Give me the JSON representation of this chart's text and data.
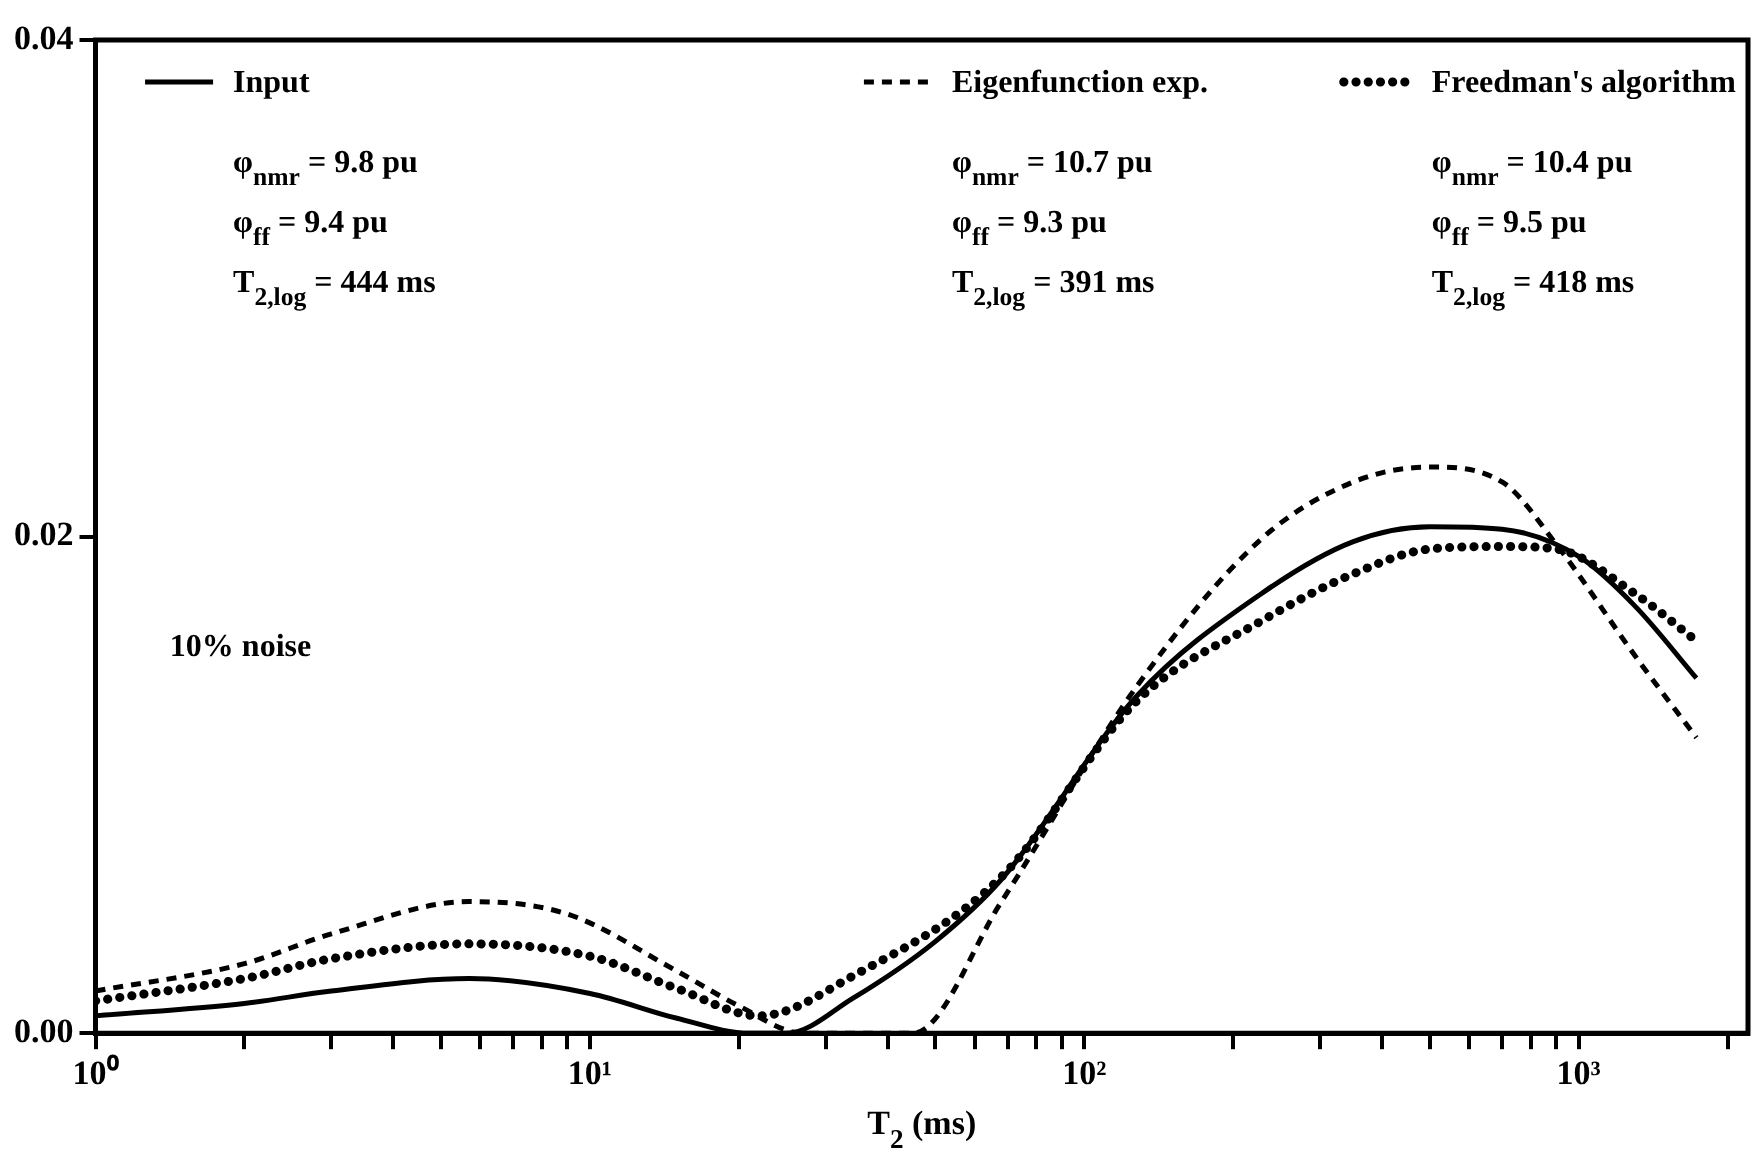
{
  "chart_data": {
    "type": "line",
    "xlabel": "T$_{2}$ (ms)",
    "log": "x",
    "grid": false,
    "legend": "top",
    "marker": "none",
    "xlim": [
      1,
      2200
    ],
    "ylim": [
      0,
      0.04
    ],
    "xticks": [
      {
        "value": 1,
        "label": "10⁰"
      },
      {
        "value": 2,
        "label": null
      },
      {
        "value": 3,
        "label": null
      },
      {
        "value": 4,
        "label": null
      },
      {
        "value": 5,
        "label": null
      },
      {
        "value": 6,
        "label": null
      },
      {
        "value": 7,
        "label": null
      },
      {
        "value": 8,
        "label": null
      },
      {
        "value": 9,
        "label": null
      },
      {
        "value": 10,
        "label": "10¹"
      },
      {
        "value": 20,
        "label": null
      },
      {
        "value": 30,
        "label": null
      },
      {
        "value": 40,
        "label": null
      },
      {
        "value": 50,
        "label": null
      },
      {
        "value": 60,
        "label": null
      },
      {
        "value": 70,
        "label": null
      },
      {
        "value": 80,
        "label": null
      },
      {
        "value": 90,
        "label": null
      },
      {
        "value": 100,
        "label": "10²"
      },
      {
        "value": 200,
        "label": null
      },
      {
        "value": 300,
        "label": null
      },
      {
        "value": 400,
        "label": null
      },
      {
        "value": 500,
        "label": null
      },
      {
        "value": 600,
        "label": null
      },
      {
        "value": 700,
        "label": null
      },
      {
        "value": 800,
        "label": null
      },
      {
        "value": 900,
        "label": null
      },
      {
        "value": 1000,
        "label": "10³"
      },
      {
        "value": 2000,
        "label": null
      }
    ],
    "yticks": [
      {
        "value": 0,
        "label": "0.00"
      },
      {
        "value": 0.02,
        "label": "0.02"
      },
      {
        "value": 0.04,
        "label": "0.04"
      }
    ],
    "series": [
      {
        "name": "Input",
        "color": "#000000",
        "line_style": "solid",
        "x": [
          1,
          2,
          3,
          5.7,
          10,
          15,
          21,
          25,
          34,
          50,
          68,
          128,
          228,
          350,
          500,
          700,
          1000,
          1300,
          1730
        ],
        "values": [
          0.0007,
          0.0012,
          0.0017,
          0.0022,
          0.0016,
          0.0006,
          0.0,
          0.0,
          0.0014,
          0.0037,
          0.0062,
          0.0136,
          0.0177,
          0.0198,
          0.0204,
          0.0203,
          0.0192,
          0.0172,
          0.0143
        ]
      },
      {
        "name": "Eigenfunction exp.",
        "color": "#000000",
        "line_style": "dashed",
        "x": [
          1,
          2,
          3,
          5.7,
          9,
          15,
          20,
          27,
          45,
          68,
          128,
          228,
          350,
          500,
          700,
          900,
          1300,
          1730
        ],
        "values": [
          0.0017,
          0.0028,
          0.004,
          0.0053,
          0.0048,
          0.0025,
          0.0011,
          0.0,
          0.0,
          0.0053,
          0.014,
          0.0199,
          0.0222,
          0.0228,
          0.0222,
          0.0197,
          0.0152,
          0.0119
        ]
      },
      {
        "name": "Freedman's algorithm",
        "color": "#000000",
        "line_style": "dotted",
        "x": [
          1,
          2,
          3,
          5.7,
          10,
          15,
          22,
          34,
          68,
          128,
          228,
          350,
          500,
          700,
          900,
          1300,
          1730
        ],
        "values": [
          0.0013,
          0.0022,
          0.003,
          0.0036,
          0.0031,
          0.0018,
          0.0007,
          0.0023,
          0.0063,
          0.0134,
          0.0166,
          0.0185,
          0.0195,
          0.0196,
          0.0195,
          0.0177,
          0.0158
        ]
      }
    ],
    "annotations": [
      "φ$_{nmr}$ = 9.8 pu",
      "φ$_{ff}$ = 9.4 pu",
      "T$_{2,log}$ = 444 ms",
      "φ$_{nmr}$ = 10.7 pu",
      "φ$_{ff}$ = 9.3 pu",
      "T$_{2,log}$ = 391 ms",
      "φ$_{nmr}$ = 10.4 pu",
      "φ$_{ff}$ = 9.5 pu",
      "T$_{2,log}$ = 418 ms",
      "10% noise"
    ]
  }
}
